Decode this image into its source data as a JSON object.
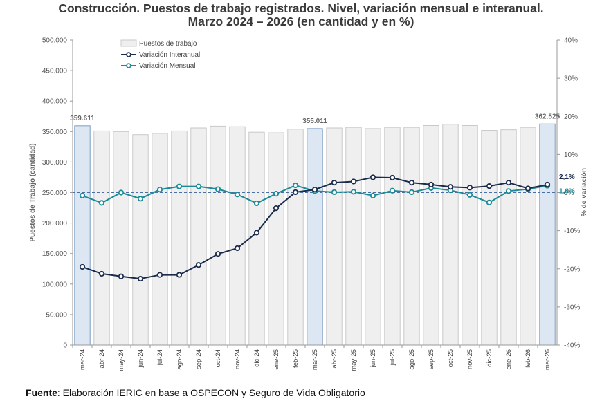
{
  "title_line1": "Construcción. Puestos de trabajo registrados. Nivel, variación mensual e interanual.",
  "title_line2": "Marzo 2024 – 2026 (en cantidad y en %)",
  "source_label": "Fuente",
  "source_text": ": Elaboración IERIC en base a OSPECON y Seguro de Vida Obligatorio",
  "colors": {
    "bar_fill": "#efefef",
    "bar_highlight_fill": "#dde7f3",
    "bar_stroke": "#c8c8c8",
    "bar_highlight_stroke": "#7b9cc2",
    "interanual": "#1a2b4c",
    "mensual": "#1a8a96",
    "zero_line": "#4a6fa5"
  },
  "chart_data": {
    "type": "bar",
    "categories": [
      "mar-24",
      "abr-24",
      "may-24",
      "jun-24",
      "jul-24",
      "ago-24",
      "sep-24",
      "oct-24",
      "nov-24",
      "dic-24",
      "ene-25",
      "feb-25",
      "mar-25",
      "abr-25",
      "may-25",
      "jun-25",
      "jul-25",
      "ago-25",
      "sep-25",
      "oct-25",
      "nov-25",
      "dic-25",
      "ene-26",
      "feb-26",
      "mar-26"
    ],
    "bar_values": [
      359611,
      351000,
      350000,
      345000,
      347000,
      351000,
      356000,
      359000,
      358000,
      349000,
      348000,
      354000,
      355011,
      356000,
      357000,
      355000,
      357000,
      357000,
      360000,
      362000,
      360000,
      352000,
      353000,
      357000,
      362525
    ],
    "highlighted_indices": [
      0,
      12,
      24
    ],
    "bar_labels": [
      {
        "index": 0,
        "text": "359.611"
      },
      {
        "index": 12,
        "text": "355.011"
      },
      {
        "index": 24,
        "text": "362.525"
      }
    ],
    "series": [
      {
        "name": "Puestos de trabajo",
        "type": "bar",
        "axis": "left"
      },
      {
        "name": "Variación Interanual",
        "type": "line",
        "axis": "right",
        "values": [
          -19.5,
          -21.3,
          -22.0,
          -22.6,
          -21.6,
          -21.6,
          -19.0,
          -16.1,
          -14.6,
          -10.5,
          -4.1,
          0.1,
          0.8,
          2.6,
          2.9,
          4.0,
          3.9,
          2.6,
          2.1,
          1.5,
          1.3,
          1.7,
          2.6,
          1.1,
          2.1
        ]
      },
      {
        "name": "Variación Mensual",
        "type": "line",
        "axis": "right",
        "values": [
          -0.8,
          -2.7,
          0.0,
          -1.6,
          0.8,
          1.6,
          1.6,
          0.9,
          -0.5,
          -2.8,
          -0.3,
          1.9,
          0.4,
          0.1,
          0.2,
          -0.8,
          0.5,
          0.1,
          1.2,
          0.6,
          -0.6,
          -2.6,
          0.4,
          0.9,
          1.8
        ]
      }
    ],
    "end_labels": {
      "interanual": "2,1%",
      "mensual": "1,8%"
    },
    "ylabel_left": "Puestos de Trabajo (cantidad)",
    "ylabel_right": "% de variación",
    "ylim_left": [
      0,
      500000
    ],
    "ylim_right": [
      -40,
      40
    ],
    "yticks_left": [
      "0",
      "50.000",
      "100.000",
      "150.000",
      "200.000",
      "250.000",
      "300.000",
      "350.000",
      "400.000",
      "450.000",
      "500.000"
    ],
    "yticks_right": [
      "-40%",
      "-30%",
      "-20%",
      "-10%",
      "0%",
      "10%",
      "20%",
      "30%",
      "40%"
    ],
    "legend_position": "top-left",
    "grid": false
  }
}
